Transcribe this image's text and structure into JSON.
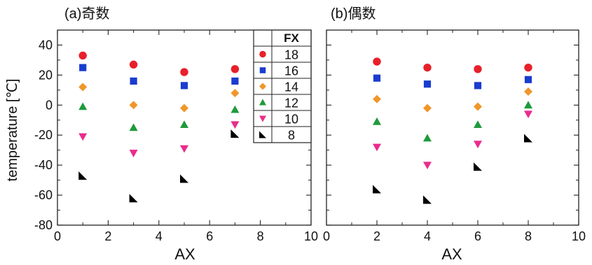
{
  "chart_data": [
    {
      "type": "scatter",
      "title": "(a)奇数",
      "xlabel": "AX",
      "ylabel": "temperature [℃]",
      "xlim": [
        0,
        10
      ],
      "ylim": [
        -80,
        50
      ],
      "x_ticks": [
        0,
        2,
        4,
        6,
        8,
        10
      ],
      "y_ticks": [
        -80,
        -60,
        -40,
        -20,
        0,
        20,
        40
      ],
      "x_tick_labels": [
        "0",
        "2",
        "4",
        "6",
        "8",
        "10"
      ],
      "y_tick_labels": [
        "-80",
        "-60",
        "-40",
        "-20",
        "0",
        "20",
        "40"
      ],
      "grid": false,
      "legend": {
        "header": "FX",
        "placement": "top-right, outside plot between panels"
      },
      "series": [
        {
          "name": "18",
          "marker": "circle",
          "color": "#e8202a",
          "x": [
            1,
            3,
            5,
            7
          ],
          "y": [
            33,
            27,
            22,
            24
          ]
        },
        {
          "name": "16",
          "marker": "square",
          "color": "#1a3ccf",
          "x": [
            1,
            3,
            5,
            7
          ],
          "y": [
            25,
            16,
            13,
            16
          ]
        },
        {
          "name": "14",
          "marker": "diamond",
          "color": "#f0962a",
          "x": [
            1,
            3,
            5,
            7
          ],
          "y": [
            12,
            0,
            -2,
            8
          ]
        },
        {
          "name": "12",
          "marker": "triangle-up",
          "color": "#1f9a3c",
          "x": [
            1,
            3,
            5,
            7
          ],
          "y": [
            -1,
            -15,
            -13,
            -3
          ]
        },
        {
          "name": "10",
          "marker": "triangle-down",
          "color": "#ea2c8c",
          "x": [
            1,
            3,
            5,
            7
          ],
          "y": [
            -21,
            -32,
            -29,
            -13
          ]
        },
        {
          "name": "8",
          "marker": "corner-triangle",
          "color": "#000000",
          "x": [
            1,
            3,
            5,
            7
          ],
          "y": [
            -47,
            -62,
            -49,
            -19
          ]
        }
      ]
    },
    {
      "type": "scatter",
      "title": "(b)偶数",
      "xlabel": "AX",
      "ylabel": "",
      "xlim": [
        0,
        10
      ],
      "ylim": [
        -80,
        50
      ],
      "x_ticks": [
        0,
        2,
        4,
        6,
        8,
        10
      ],
      "x_tick_labels": [
        "0",
        "2",
        "4",
        "6",
        "8",
        "10"
      ],
      "grid": false,
      "series": [
        {
          "name": "18",
          "marker": "circle",
          "color": "#e8202a",
          "x": [
            2,
            4,
            6,
            8
          ],
          "y": [
            29,
            25,
            24,
            25
          ]
        },
        {
          "name": "16",
          "marker": "square",
          "color": "#1a3ccf",
          "x": [
            2,
            4,
            6,
            8
          ],
          "y": [
            18,
            14,
            13,
            17
          ]
        },
        {
          "name": "14",
          "marker": "diamond",
          "color": "#f0962a",
          "x": [
            2,
            4,
            6,
            8
          ],
          "y": [
            4,
            -2,
            -1,
            9
          ]
        },
        {
          "name": "12",
          "marker": "triangle-up",
          "color": "#1f9a3c",
          "x": [
            2,
            4,
            6,
            8
          ],
          "y": [
            -11,
            -22,
            -13,
            0
          ]
        },
        {
          "name": "10",
          "marker": "triangle-down",
          "color": "#ea2c8c",
          "x": [
            2,
            4,
            6,
            8
          ],
          "y": [
            -28,
            -40,
            -26,
            -6
          ]
        },
        {
          "name": "8",
          "marker": "corner-triangle",
          "color": "#000000",
          "x": [
            2,
            4,
            6,
            8
          ],
          "y": [
            -56,
            -63,
            -41,
            -22
          ]
        }
      ]
    }
  ]
}
